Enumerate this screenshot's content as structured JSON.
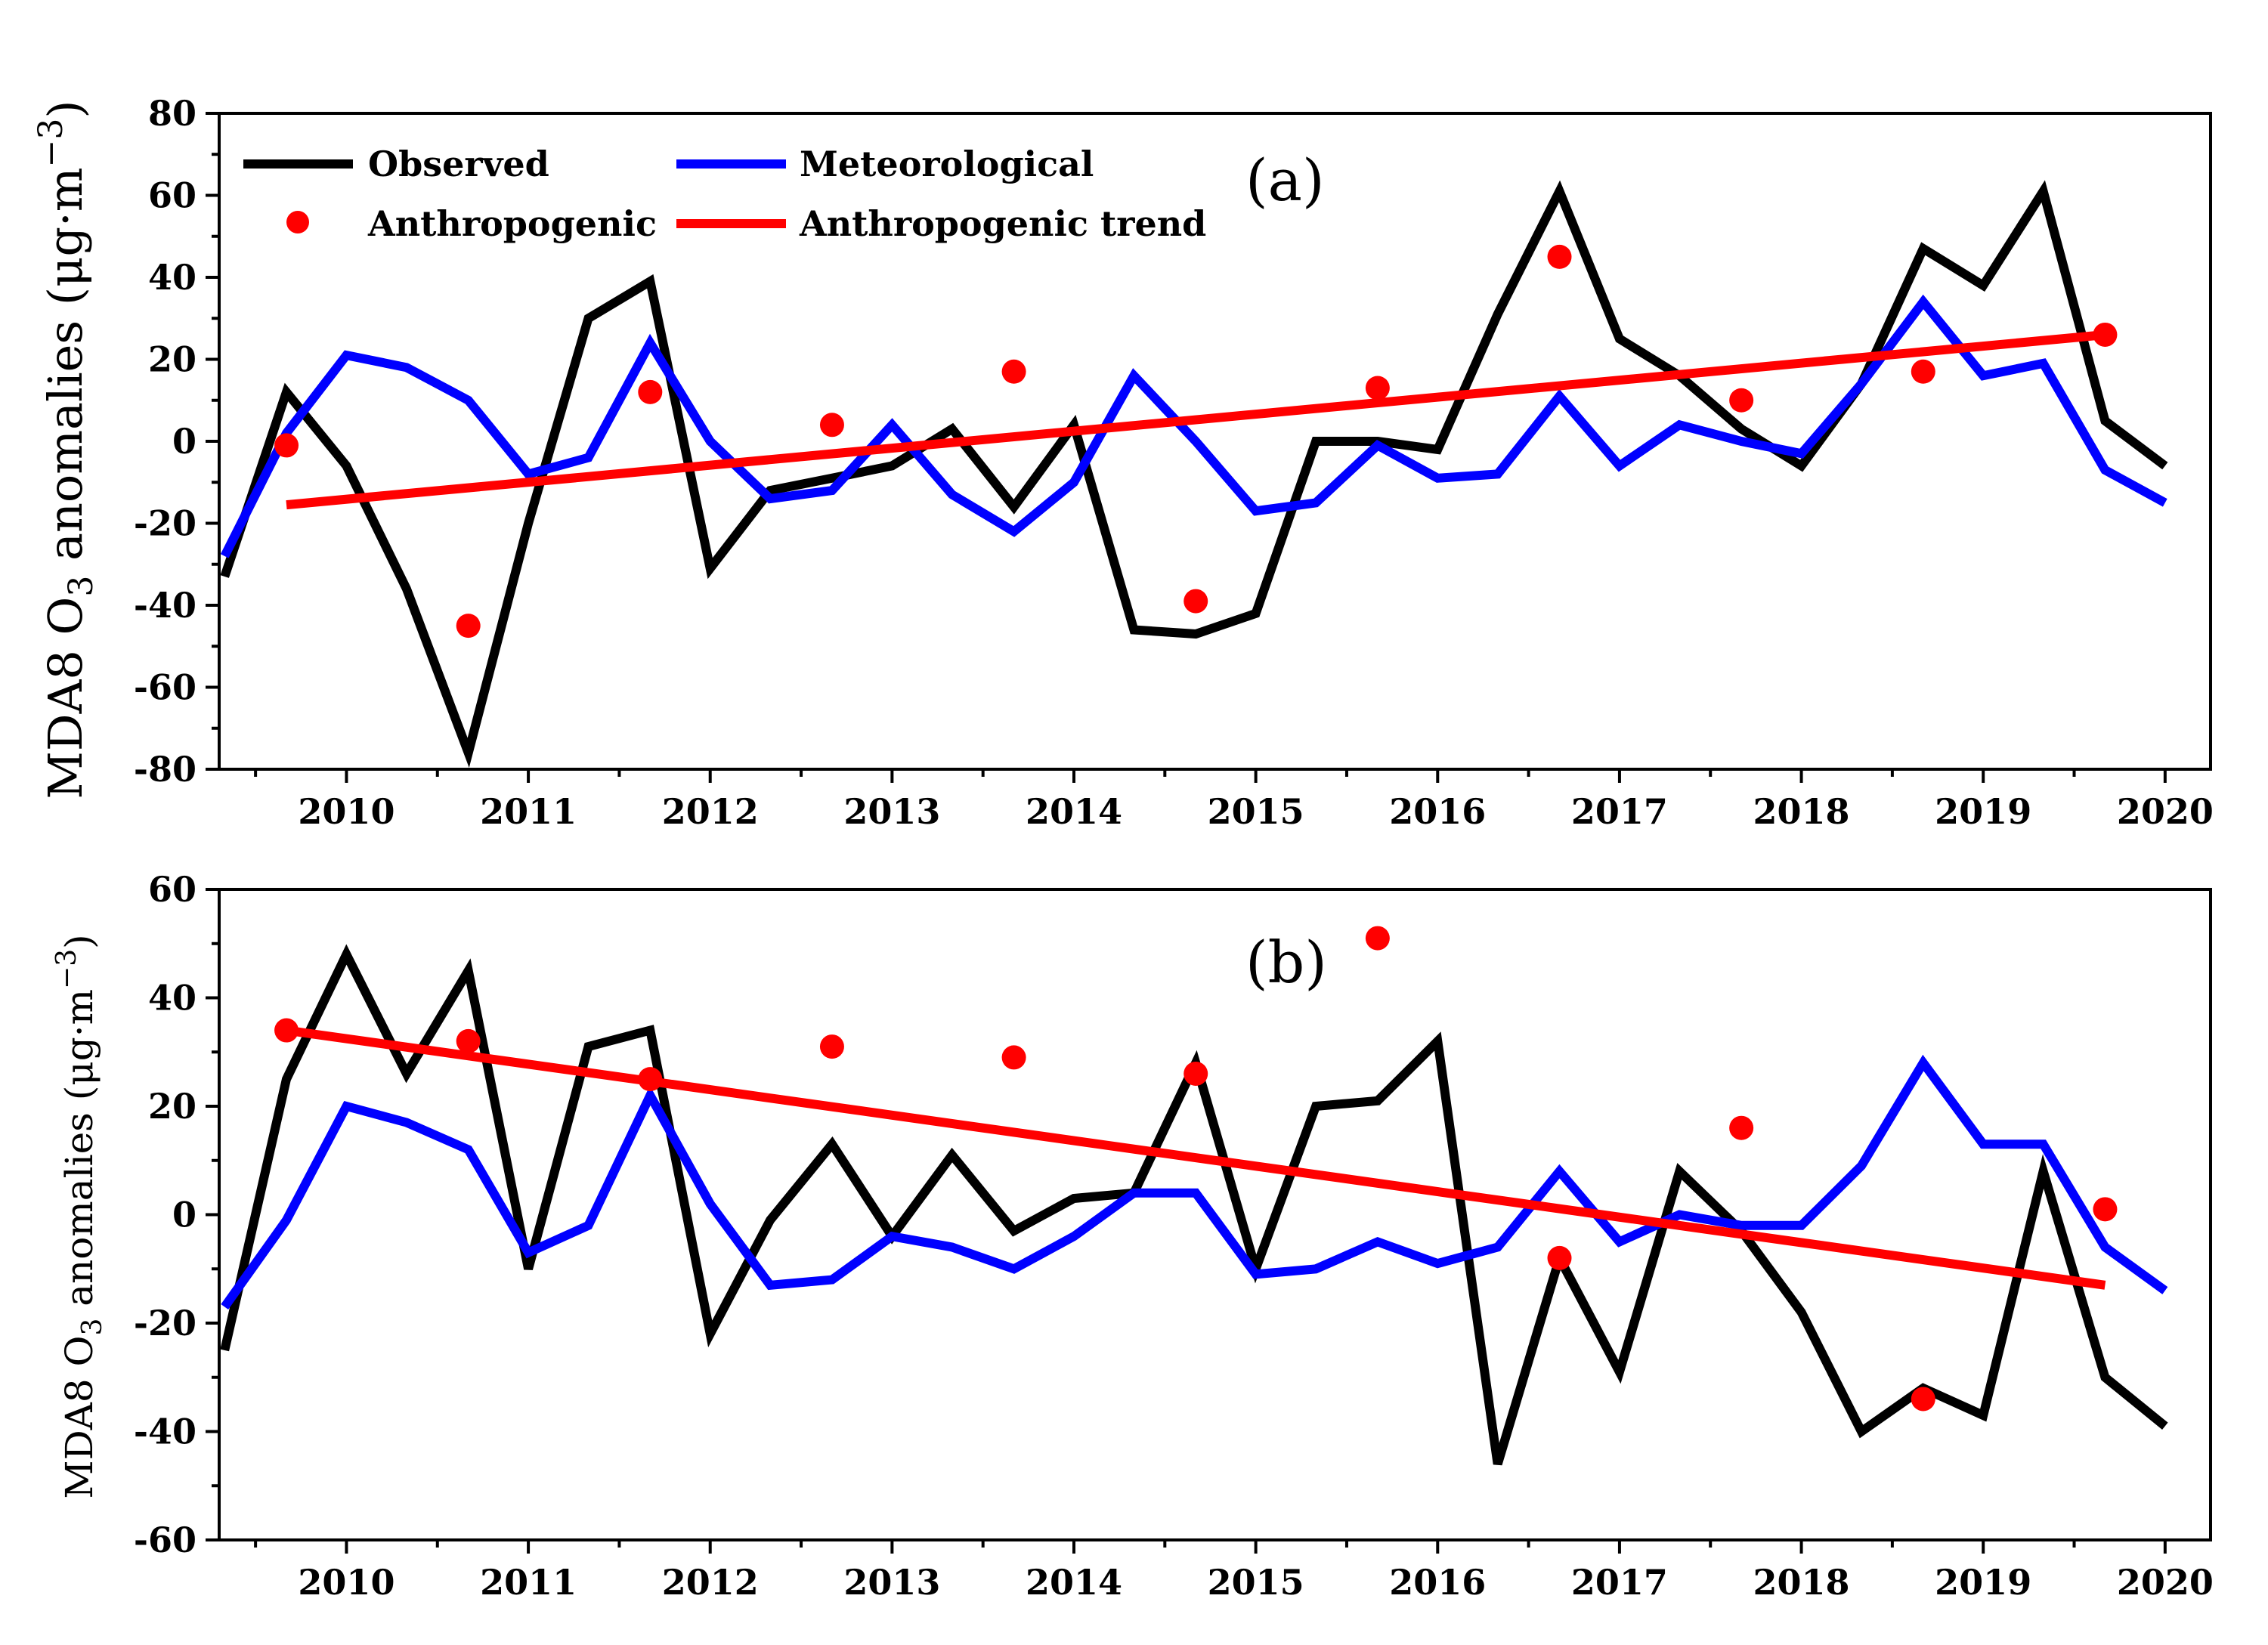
{
  "chart_data": [
    {
      "type": "line",
      "panel_label": "(a)",
      "ylabel": "MDA8 O3 anomalies (μg·m⁻³)",
      "ylabel_parts": {
        "main": "MDA8 O",
        "sub": "3",
        "tail": " anomalies (μg·m",
        "sup": "−3",
        "close": ")"
      },
      "xlabel": "",
      "ylim": [
        -80,
        80
      ],
      "yticks": [
        80,
        60,
        40,
        20,
        0,
        -20,
        -40,
        -60,
        -80
      ],
      "xlim": [
        2009.3,
        2020.25
      ],
      "xticks": [
        2010,
        2011,
        2012,
        2013,
        2014,
        2015,
        2016,
        2017,
        2018,
        2019,
        2020
      ],
      "legend": [
        {
          "name": "Observed",
          "style": "line",
          "color": "#000000"
        },
        {
          "name": "Meteorological",
          "style": "line",
          "color": "#0000ff"
        },
        {
          "name": "Anthropogenic",
          "style": "dot",
          "color": "#ff0000"
        },
        {
          "name": "Anthropogenic trend",
          "style": "line",
          "color": "#ff0000"
        }
      ],
      "series": [
        {
          "name": "Observed",
          "style": "line",
          "color": "#000000",
          "x": [
            2009.33,
            2009.67,
            2010,
            2010.33,
            2010.67,
            2011,
            2011.33,
            2011.67,
            2012,
            2012.33,
            2012.67,
            2013,
            2013.33,
            2013.67,
            2014,
            2014.33,
            2014.67,
            2015,
            2015.33,
            2015.67,
            2016,
            2016.33,
            2016.67,
            2017,
            2017.33,
            2017.67,
            2018,
            2018.33,
            2018.67,
            2019,
            2019.33,
            2019.67,
            2020
          ],
          "values": [
            -33,
            12,
            -6,
            -36,
            -76,
            -20,
            30,
            39,
            -31,
            -12,
            -9,
            -6,
            3,
            -16,
            4,
            -46,
            -47,
            -42,
            0,
            0,
            -2,
            31,
            61,
            25,
            16,
            3,
            -6,
            14,
            47,
            38,
            61,
            5,
            -6
          ]
        },
        {
          "name": "Meteorological",
          "style": "line",
          "color": "#0000ff",
          "x": [
            2009.33,
            2009.67,
            2010,
            2010.33,
            2010.67,
            2011,
            2011.33,
            2011.67,
            2012,
            2012.33,
            2012.67,
            2013,
            2013.33,
            2013.67,
            2014,
            2014.33,
            2014.67,
            2015,
            2015.33,
            2015.67,
            2016,
            2016.33,
            2016.67,
            2017,
            2017.33,
            2017.67,
            2018,
            2018.33,
            2018.67,
            2019,
            2019.33,
            2019.67,
            2020
          ],
          "values": [
            -28,
            2,
            21,
            18,
            10,
            -8,
            -4,
            24,
            0,
            -14,
            -12,
            4,
            -13,
            -22,
            -10,
            16,
            0,
            -17,
            -15,
            -1,
            -9,
            -8,
            11,
            -6,
            4,
            0,
            -3,
            14,
            34,
            16,
            19,
            -7,
            -15
          ]
        },
        {
          "name": "Anthropogenic",
          "style": "dot",
          "color": "#ff0000",
          "x": [
            2009.67,
            2010.67,
            2011.67,
            2012.67,
            2013.67,
            2014.67,
            2015.67,
            2016.67,
            2017.67,
            2018.67,
            2019.67
          ],
          "values": [
            -1,
            -45,
            12,
            4,
            17,
            -39,
            13,
            45,
            10,
            17,
            26
          ]
        },
        {
          "name": "Anthropogenic trend",
          "style": "line",
          "color": "#ff0000",
          "x": [
            2009.67,
            2019.67
          ],
          "values": [
            -15.5,
            26
          ]
        }
      ]
    },
    {
      "type": "line",
      "panel_label": "(b)",
      "ylabel": "MDA8 O3 anomalies (μg·m⁻³)",
      "ylabel_parts": {
        "main": "MDA8 O",
        "sub": "3",
        "tail": " anomalies (μg·m",
        "sup": "−3",
        "close": ")"
      },
      "xlabel": "",
      "ylim": [
        -60,
        60
      ],
      "yticks": [
        60,
        40,
        20,
        0,
        -20,
        -40,
        -60
      ],
      "xlim": [
        2009.3,
        2020.25
      ],
      "xticks": [
        2010,
        2011,
        2012,
        2013,
        2014,
        2015,
        2016,
        2017,
        2018,
        2019,
        2020
      ],
      "series": [
        {
          "name": "Observed",
          "style": "line",
          "color": "#000000",
          "x": [
            2009.33,
            2009.67,
            2010,
            2010.33,
            2010.67,
            2011,
            2011.33,
            2011.67,
            2012,
            2012.33,
            2012.67,
            2013,
            2013.33,
            2013.67,
            2014,
            2014.33,
            2014.67,
            2015,
            2015.33,
            2015.67,
            2016,
            2016.33,
            2016.67,
            2017,
            2017.33,
            2017.67,
            2018,
            2018.33,
            2018.67,
            2019,
            2019.33,
            2019.67,
            2020
          ],
          "values": [
            -25,
            25,
            48,
            26,
            45,
            -10,
            31,
            34,
            -22,
            -1,
            13,
            -4,
            11,
            -3,
            3,
            4,
            28,
            -10,
            20,
            21,
            32,
            -46,
            -8,
            -29,
            8,
            -3,
            -18,
            -40,
            -32,
            -37,
            8,
            -30,
            -39
          ]
        },
        {
          "name": "Meteorological",
          "style": "line",
          "color": "#0000ff",
          "x": [
            2009.33,
            2009.67,
            2010,
            2010.33,
            2010.67,
            2011,
            2011.33,
            2011.67,
            2012,
            2012.33,
            2012.67,
            2013,
            2013.33,
            2013.67,
            2014,
            2014.33,
            2014.67,
            2015,
            2015.33,
            2015.67,
            2016,
            2016.33,
            2016.67,
            2017,
            2017.33,
            2017.67,
            2018,
            2018.33,
            2018.67,
            2019,
            2019.33,
            2019.67,
            2020
          ],
          "values": [
            -17,
            -1,
            20,
            17,
            12,
            -7,
            -2,
            22,
            2,
            -13,
            -12,
            -4,
            -6,
            -10,
            -4,
            4,
            4,
            -11,
            -10,
            -5,
            -9,
            -6,
            8,
            -5,
            0,
            -2,
            -2,
            9,
            28,
            13,
            13,
            -6,
            -14
          ]
        },
        {
          "name": "Anthropogenic",
          "style": "dot",
          "color": "#ff0000",
          "x": [
            2009.67,
            2010.67,
            2011.67,
            2012.67,
            2013.67,
            2014.67,
            2015.67,
            2016.67,
            2017.67,
            2018.67,
            2019.67
          ],
          "values": [
            34,
            32,
            25,
            31,
            29,
            26,
            51,
            -8,
            16,
            -34,
            1
          ]
        },
        {
          "name": "Anthropogenic trend",
          "style": "line",
          "color": "#ff0000",
          "x": [
            2009.67,
            2019.67
          ],
          "values": [
            34,
            -13
          ]
        }
      ]
    }
  ]
}
